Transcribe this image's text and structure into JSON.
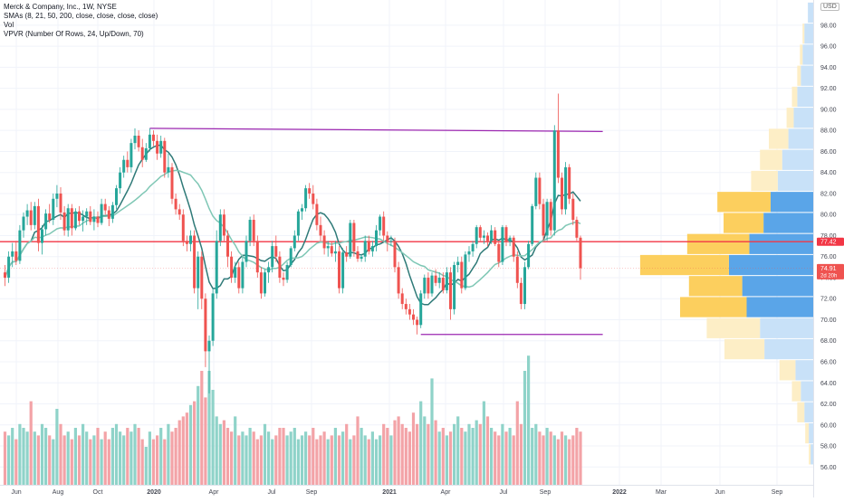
{
  "legend": {
    "title": "Merck & Company, Inc., 1W, NYSE",
    "sma": "SMAs (8, 21, 50, 200, close, close, close, close)",
    "vol": "Vol",
    "vpvr": "VPVR (Number Of Rows, 24, Up/Down, 70)"
  },
  "currency": "USD",
  "colors": {
    "up": "#26a69a",
    "down": "#ef5350",
    "up_vol": "#8fd3c9",
    "down_vol": "#f3a3a7",
    "sma_fast": "#2f7a78",
    "sma_slow": "#7fc7b5",
    "resistance": "#9c27b0",
    "support": "#9c27b0",
    "hline": "#f23645",
    "vp_up": "#5aa5e8",
    "vp_down": "#fccf5e",
    "vp_up_light": "#c8e1f8",
    "vp_down_light": "#fdeec6"
  },
  "chart_data": {
    "type": "candlestick",
    "y_range": [
      55,
      100
    ],
    "y_ticks": [
      "56.00",
      "58.00",
      "60.00",
      "62.00",
      "64.00",
      "66.00",
      "68.00",
      "70.00",
      "72.00",
      "74.00",
      "76.00",
      "78.00",
      "80.00",
      "82.00",
      "84.00",
      "86.00",
      "88.00",
      "90.00",
      "92.00",
      "94.00",
      "96.00",
      "98.00"
    ],
    "x_ticks": [
      "Jun",
      "Aug",
      "Oct",
      "2020",
      "Apr",
      "Jul",
      "Sep",
      "2021",
      "Apr",
      "Jul",
      "Sep",
      "2022",
      "Mar",
      "Jun",
      "Sep"
    ],
    "price_labels": [
      {
        "value": 77.42,
        "text": "77.42",
        "color": "#f23645"
      },
      {
        "value": 74.91,
        "text": "74.91",
        "sub": "2d 20h",
        "color": "#ef5350"
      }
    ],
    "horizontal_line": 77.42,
    "resistance_line": {
      "from_index": 39,
      "to_index": 161,
      "from_value": 88.2,
      "to_value": 87.9
    },
    "support_line": {
      "from_index": 112,
      "to_index": 161,
      "value": 68.6
    },
    "candles": [
      [
        74.5,
        75.2,
        73.2,
        74
      ],
      [
        74,
        76.5,
        73.5,
        76
      ],
      [
        76,
        77.3,
        75,
        76.5
      ],
      [
        76.5,
        77.5,
        75.2,
        75.6
      ],
      [
        75.6,
        79,
        75.3,
        78.5
      ],
      [
        78.5,
        80.2,
        77.8,
        79.8
      ],
      [
        79.8,
        81,
        79,
        80.4
      ],
      [
        80.4,
        81.2,
        78.5,
        79
      ],
      [
        79,
        81.2,
        78.6,
        80.8
      ],
      [
        80.8,
        81.5,
        76.5,
        77.3
      ],
      [
        77.3,
        79,
        76.2,
        78.6
      ],
      [
        78.6,
        80.5,
        78,
        80.1
      ],
      [
        80.1,
        81,
        79.2,
        79.5
      ],
      [
        79.5,
        82,
        79,
        81.5
      ],
      [
        81.5,
        82.8,
        80.7,
        82
      ],
      [
        82,
        82.6,
        79.5,
        80.2
      ],
      [
        80.2,
        80.8,
        78,
        78.5
      ],
      [
        78.5,
        81,
        77.9,
        80.6
      ],
      [
        80.6,
        81,
        78,
        78.7
      ],
      [
        78.7,
        80.6,
        78.5,
        80.3
      ],
      [
        80.3,
        80.8,
        79,
        79.4
      ],
      [
        79.4,
        80.4,
        78.4,
        79.8
      ],
      [
        79.8,
        80.6,
        79,
        80.3
      ],
      [
        80.3,
        80.8,
        79,
        79.3
      ],
      [
        79.3,
        80.5,
        78.5,
        79.8
      ],
      [
        79.8,
        80.3,
        78.8,
        79.2
      ],
      [
        79.2,
        81.5,
        79,
        81
      ],
      [
        81,
        81.5,
        80,
        80.4
      ],
      [
        80.4,
        80.8,
        78.9,
        79.6
      ],
      [
        79.6,
        81.2,
        79.2,
        80.9
      ],
      [
        80.9,
        82.8,
        80.5,
        82.5
      ],
      [
        82.5,
        84.5,
        82,
        84
      ],
      [
        84,
        85.6,
        83.5,
        85.2
      ],
      [
        85.2,
        86,
        84,
        84.5
      ],
      [
        84.5,
        87.2,
        84,
        86.8
      ],
      [
        86.8,
        88.2,
        86.2,
        87.5
      ],
      [
        87.5,
        88,
        86,
        86.4
      ],
      [
        86.4,
        87.2,
        84.5,
        85.2
      ],
      [
        85.2,
        86.8,
        85,
        86.3
      ],
      [
        86.3,
        88.2,
        86,
        87.6
      ],
      [
        87.6,
        88,
        86.5,
        87
      ],
      [
        87,
        87.6,
        85.2,
        85.8
      ],
      [
        85.8,
        87.5,
        85.4,
        87
      ],
      [
        87,
        87.3,
        83.5,
        84
      ],
      [
        84,
        85.8,
        83.5,
        84.5
      ],
      [
        84.5,
        84.9,
        81,
        81.5
      ],
      [
        81.5,
        82,
        80,
        80.5
      ],
      [
        80.5,
        81,
        79.5,
        80
      ],
      [
        80,
        80.5,
        77,
        77.5
      ],
      [
        77.5,
        78,
        76.5,
        77.2
      ],
      [
        77.2,
        78.5,
        76.5,
        78
      ],
      [
        78,
        78.5,
        72.5,
        73
      ],
      [
        73,
        76.5,
        71,
        76
      ],
      [
        76,
        76.5,
        71,
        72
      ],
      [
        72,
        72.5,
        65.5,
        67
      ],
      [
        67,
        68.5,
        63,
        68
      ],
      [
        68,
        73,
        67.5,
        72.5
      ],
      [
        72.5,
        78.5,
        72,
        77.5
      ],
      [
        77.5,
        80.5,
        77,
        80
      ],
      [
        80,
        80.5,
        77.5,
        78
      ],
      [
        78,
        78.5,
        75,
        76
      ],
      [
        76,
        76.5,
        73.5,
        74
      ],
      [
        74,
        75.5,
        73.5,
        75
      ],
      [
        75,
        75.5,
        72.5,
        73
      ],
      [
        73,
        76,
        72.5,
        75.5
      ],
      [
        75.5,
        78,
        75,
        77.5
      ],
      [
        77.5,
        79.8,
        77,
        79.5
      ],
      [
        79.5,
        80,
        77,
        77.5
      ],
      [
        77.5,
        78,
        74,
        74.5
      ],
      [
        74.5,
        75,
        72,
        72.5
      ],
      [
        72.5,
        74.8,
        72.2,
        74.5
      ],
      [
        74.5,
        75.5,
        73.5,
        75
      ],
      [
        75,
        77.5,
        74.5,
        77
      ],
      [
        77,
        78,
        75.5,
        76
      ],
      [
        76,
        76.5,
        73.5,
        74
      ],
      [
        74,
        74.5,
        73.2,
        73.8
      ],
      [
        73.8,
        75.5,
        73.5,
        75.2
      ],
      [
        75.2,
        77,
        75,
        76.8
      ],
      [
        76.8,
        78.5,
        76.5,
        78
      ],
      [
        78,
        80.5,
        77.5,
        80.3
      ],
      [
        80.3,
        81,
        79.5,
        80.6
      ],
      [
        80.6,
        82.8,
        80.3,
        82.5
      ],
      [
        82.5,
        83,
        81.5,
        82
      ],
      [
        82,
        82.8,
        80.5,
        81
      ],
      [
        81,
        81.5,
        78.5,
        79
      ],
      [
        79,
        79.8,
        77.5,
        78
      ],
      [
        78,
        78.5,
        76.2,
        76.8
      ],
      [
        76.8,
        77.5,
        76,
        77
      ],
      [
        77,
        77.4,
        76,
        76.3
      ],
      [
        76.3,
        77.5,
        75.5,
        76.5
      ],
      [
        76.5,
        77,
        72.5,
        73
      ],
      [
        73,
        76.8,
        72.5,
        76.4
      ],
      [
        76.4,
        77,
        75.5,
        76
      ],
      [
        76,
        79.5,
        75.8,
        79.2
      ],
      [
        79.2,
        79.5,
        76,
        76.5
      ],
      [
        76.5,
        77,
        75.5,
        75.8
      ],
      [
        75.8,
        76.2,
        75.5,
        76
      ],
      [
        76,
        78,
        75.5,
        77.5
      ],
      [
        77.5,
        78,
        76.2,
        76.5
      ],
      [
        76.5,
        77.5,
        76,
        77
      ],
      [
        77,
        79,
        76.5,
        78.5
      ],
      [
        78.5,
        80,
        78,
        79.8
      ],
      [
        79.8,
        80.3,
        77.5,
        78
      ],
      [
        78,
        78.4,
        76.5,
        77.5
      ],
      [
        77.5,
        78,
        77,
        77.5
      ],
      [
        77.5,
        77.8,
        74.5,
        75
      ],
      [
        75,
        75.5,
        72,
        72.5
      ],
      [
        72.5,
        73,
        71,
        71.5
      ],
      [
        71.5,
        72,
        70.5,
        71
      ],
      [
        71,
        71.5,
        70,
        70.5
      ],
      [
        70.5,
        71,
        69.5,
        70
      ],
      [
        70,
        70.3,
        68.6,
        69.5
      ],
      [
        69.5,
        72.8,
        69.2,
        72.5
      ],
      [
        72.5,
        74.3,
        72,
        74
      ],
      [
        74,
        74.5,
        72,
        72.5
      ],
      [
        72.5,
        74.5,
        72.2,
        74.2
      ],
      [
        74.2,
        74.8,
        73.2,
        73.5
      ],
      [
        73.5,
        74.5,
        73,
        74
      ],
      [
        74,
        74.5,
        72.5,
        72.8
      ],
      [
        72.8,
        75,
        72.5,
        74.5
      ],
      [
        74.5,
        75,
        70,
        71
      ],
      [
        71,
        75.5,
        70.5,
        75.2
      ],
      [
        75.2,
        76,
        74.5,
        75.5
      ],
      [
        75.5,
        76,
        72.5,
        73
      ],
      [
        73,
        76.5,
        72.8,
        76.2
      ],
      [
        76.2,
        77,
        75.5,
        76.5
      ],
      [
        76.5,
        77.5,
        76,
        77.2
      ],
      [
        77.2,
        79,
        76.8,
        78.8
      ],
      [
        78.8,
        79,
        77.5,
        77.8
      ],
      [
        77.8,
        78.5,
        77.2,
        78
      ],
      [
        78,
        78.3,
        77,
        77.5
      ],
      [
        77.5,
        79,
        77.2,
        78.5
      ],
      [
        78.5,
        78.8,
        77,
        77.2
      ],
      [
        77.2,
        77.5,
        75,
        75.5
      ],
      [
        75.5,
        79,
        75.2,
        78.8
      ],
      [
        78.8,
        79,
        77,
        77.4
      ],
      [
        77.4,
        78,
        77,
        77.8
      ],
      [
        77.8,
        78,
        75.5,
        76
      ],
      [
        76,
        76.5,
        73,
        73.5
      ],
      [
        73.5,
        74,
        71,
        71.5
      ],
      [
        71.5,
        75.5,
        71,
        75
      ],
      [
        75,
        77.5,
        74.8,
        77.2
      ],
      [
        77.2,
        81,
        77,
        80.8
      ],
      [
        80.8,
        84,
        80.5,
        83.5
      ],
      [
        83.5,
        84,
        80.5,
        81
      ],
      [
        81,
        81.5,
        77.5,
        78
      ],
      [
        78,
        81.5,
        77.5,
        81.2
      ],
      [
        81.2,
        81.5,
        78,
        78.5
      ],
      [
        78.5,
        88.5,
        78,
        88
      ],
      [
        88,
        91.5,
        83,
        83.5
      ],
      [
        83.5,
        84,
        80,
        80.5
      ],
      [
        80.5,
        85,
        80,
        84.5
      ],
      [
        84.5,
        84.8,
        81,
        81.5
      ],
      [
        81.5,
        82,
        79,
        79.5
      ],
      [
        79.5,
        79.8,
        77.5,
        77.8
      ],
      [
        77.8,
        78,
        73.8,
        74.9
      ]
    ],
    "volumes": [
      1.4,
      1.3,
      1.5,
      1.2,
      1.6,
      1.5,
      1.4,
      2.2,
      1.4,
      1.3,
      1.6,
      1.5,
      1.3,
      1.2,
      2,
      1.6,
      1.3,
      1.4,
      1.2,
      1.5,
      1.3,
      1.6,
      1.4,
      1.2,
      1.3,
      1.5,
      1.2,
      1.4,
      1.2,
      1.5,
      1.6,
      1.4,
      1.3,
      1.5,
      1.4,
      1.6,
      1.5,
      1.2,
      1,
      1.4,
      1.2,
      1.3,
      1.5,
      1.2,
      1.6,
      1.4,
      1.5,
      1.7,
      1.8,
      1.9,
      2.1,
      2.2,
      2.6,
      3,
      2.3,
      3,
      2.5,
      1.8,
      1.6,
      1.7,
      1.5,
      1.4,
      1.8,
      1.3,
      1.4,
      1.3,
      1.5,
      1.4,
      1.2,
      1.3,
      1.6,
      1.4,
      1.2,
      1.3,
      1.5,
      1.5,
      1.3,
      1.4,
      1.5,
      1.2,
      1.3,
      1.4,
      1.3,
      1.5,
      1.2,
      1.3,
      1.4,
      1.2,
      1.3,
      1.5,
      1.3,
      1.4,
      1.6,
      1.2,
      1.3,
      1.8,
      1.5,
      1.3,
      1.2,
      1.4,
      1.2,
      1.3,
      1.6,
      1.5,
      1.3,
      1.7,
      1.8,
      1.6,
      1.5,
      1.4,
      1.9,
      1.6,
      2.2,
      1.8,
      1.6,
      2.8,
      1.7,
      1.4,
      1.5,
      1.3,
      1.4,
      1.6,
      1.8,
      1.5,
      1.4,
      1.6,
      1.5,
      1.7,
      1.6,
      2.2,
      1.8,
      1.5,
      1.4,
      1.3,
      1.6,
      1.4,
      1.5,
      1.3,
      2.2,
      1.6,
      3,
      3.4,
      1.5,
      1.6,
      1.4,
      1.3,
      1.5,
      1.4,
      1.3,
      1.2,
      1.4,
      1.3,
      1.2,
      1.3,
      1.5,
      1.4
    ],
    "volume_profile": [
      {
        "value": 99.2,
        "up": 6,
        "down": 0
      },
      {
        "value": 97.2,
        "up": 10,
        "down": 2
      },
      {
        "value": 95.2,
        "up": 12,
        "down": 3
      },
      {
        "value": 93.2,
        "up": 14,
        "down": 4
      },
      {
        "value": 91.2,
        "up": 18,
        "down": 6
      },
      {
        "value": 89.2,
        "up": 22,
        "down": 8
      },
      {
        "value": 87.2,
        "up": 28,
        "down": 22
      },
      {
        "value": 85.2,
        "up": 35,
        "down": 25
      },
      {
        "value": 83.2,
        "up": 40,
        "down": 30
      },
      {
        "value": 81.2,
        "up": 48,
        "down": 60
      },
      {
        "value": 79.2,
        "up": 56,
        "down": 45
      },
      {
        "value": 77.2,
        "up": 72,
        "down": 70
      },
      {
        "value": 75.2,
        "up": 95,
        "down": 100
      },
      {
        "value": 73.2,
        "up": 80,
        "down": 60
      },
      {
        "value": 71.2,
        "up": 75,
        "down": 75
      },
      {
        "value": 69.2,
        "up": 60,
        "down": 60
      },
      {
        "value": 67.2,
        "up": 55,
        "down": 45
      },
      {
        "value": 65.2,
        "up": 20,
        "down": 18
      },
      {
        "value": 63.2,
        "up": 14,
        "down": 10
      },
      {
        "value": 61.2,
        "up": 10,
        "down": 8
      },
      {
        "value": 59.2,
        "up": 5,
        "down": 4
      },
      {
        "value": 57.2,
        "up": 3,
        "down": 2
      }
    ]
  }
}
